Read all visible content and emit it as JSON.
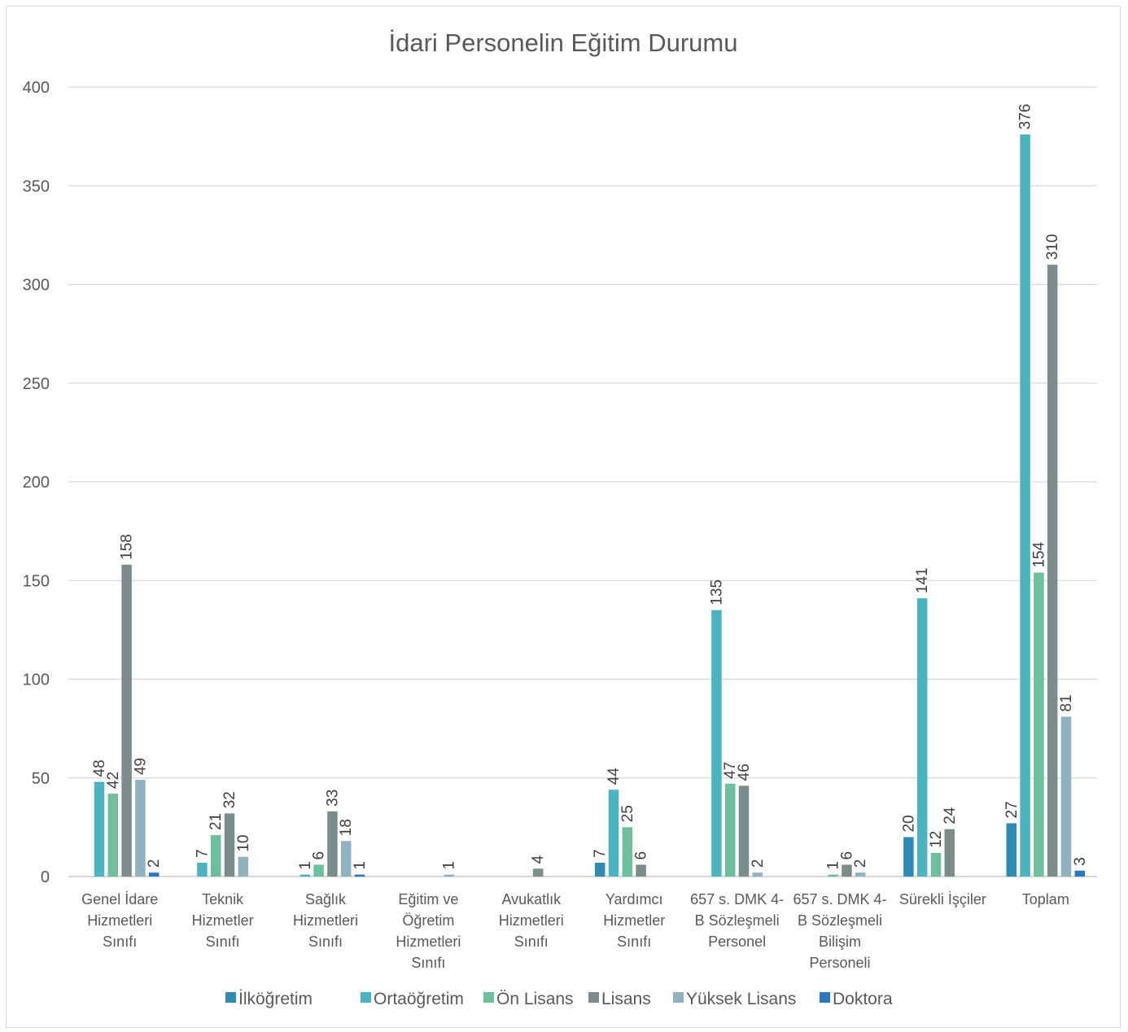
{
  "chart_data": {
    "type": "bar",
    "title": "İdari Personelin Eğitim Durumu",
    "xlabel": "",
    "ylabel": "",
    "ylim": [
      0,
      400
    ],
    "yticks": [
      0,
      50,
      100,
      150,
      200,
      250,
      300,
      350,
      400
    ],
    "grid": true,
    "legend_position": "bottom",
    "categories": [
      [
        "Genel İdare",
        "Hizmetleri",
        "Sınıfı"
      ],
      [
        "Teknik",
        "Hizmetler",
        "Sınıfı"
      ],
      [
        "Sağlık",
        "Hizmetleri",
        "Sınıfı"
      ],
      [
        "Eğitim ve",
        "Öğretim",
        "Hizmetleri",
        "Sınıfı"
      ],
      [
        "Avukatlık",
        "Hizmetleri",
        "Sınıfı"
      ],
      [
        "Yardımcı",
        "Hizmetler",
        "Sınıfı"
      ],
      [
        "657 s. DMK 4-",
        "B Sözleşmeli",
        "Personel"
      ],
      [
        "657 s. DMK 4-",
        "B Sözleşmeli",
        "Bilişim",
        "Personeli"
      ],
      [
        "Sürekli İşçiler"
      ],
      [
        "Toplam"
      ]
    ],
    "series": [
      {
        "name": "İlköğretim",
        "color": "#2e8bb3",
        "values": [
          null,
          null,
          null,
          null,
          null,
          7,
          null,
          null,
          20,
          27
        ]
      },
      {
        "name": "Ortaöğretim",
        "color": "#4ab5c1",
        "values": [
          48,
          7,
          1,
          null,
          null,
          44,
          135,
          null,
          141,
          376
        ]
      },
      {
        "name": "Ön Lisans",
        "color": "#6dbf9e",
        "values": [
          42,
          21,
          6,
          null,
          null,
          25,
          47,
          1,
          12,
          154
        ]
      },
      {
        "name": "Lisans",
        "color": "#7b8c8d",
        "values": [
          158,
          32,
          33,
          null,
          4,
          6,
          46,
          6,
          24,
          310
        ]
      },
      {
        "name": "Yüksek Lisans",
        "color": "#8fb2be",
        "values": [
          49,
          10,
          18,
          1,
          null,
          null,
          2,
          2,
          null,
          81
        ]
      },
      {
        "name": "Doktora",
        "color": "#2a78c2",
        "values": [
          2,
          null,
          1,
          null,
          null,
          null,
          null,
          null,
          null,
          3
        ]
      }
    ]
  }
}
